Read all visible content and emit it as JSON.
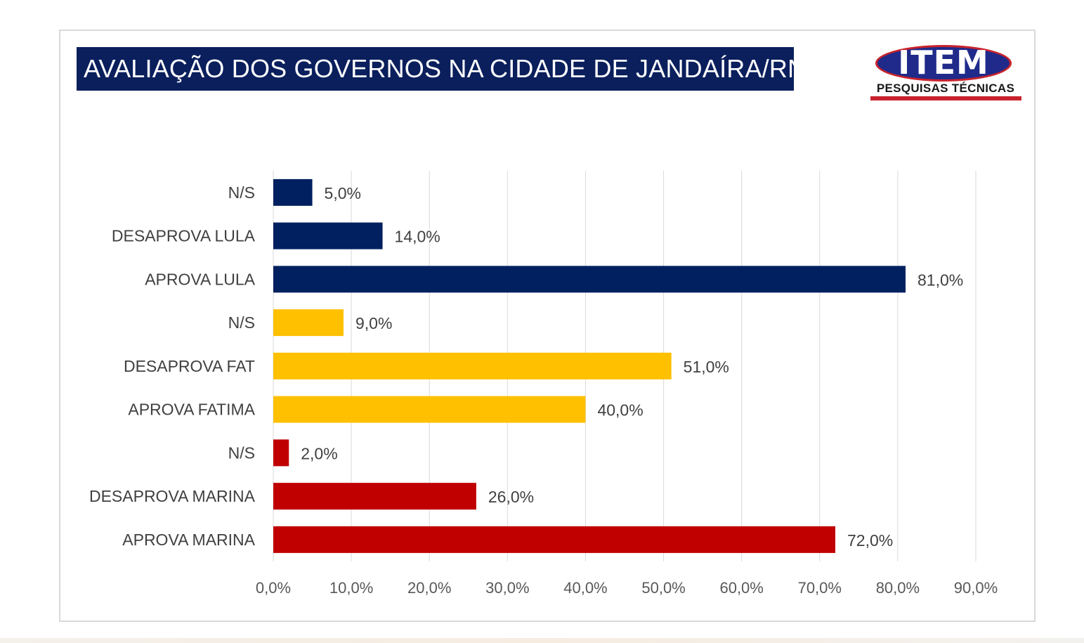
{
  "header": {
    "title": "AVALIAÇÃO DOS GOVERNOS NA CIDADE DE JANDAÍRA/RN"
  },
  "logo": {
    "main_text": "ITEM",
    "sub_text": "PESQUISAS TÉCNICAS"
  },
  "colors": {
    "title_bg": "#0a1f5c",
    "lula": "#002060",
    "fatima": "#ffc000",
    "marina": "#c00000",
    "gridline": "#d9d9d9",
    "label": "#404040"
  },
  "chart_data": {
    "type": "bar",
    "orientation": "horizontal",
    "title": "AVALIAÇÃO DOS GOVERNOS NA CIDADE DE JANDAÍRA/RN",
    "xlabel": "",
    "ylabel": "",
    "xlim": [
      0,
      90
    ],
    "x_ticks": [
      0,
      10,
      20,
      30,
      40,
      50,
      60,
      70,
      80,
      90
    ],
    "x_tick_labels": [
      "0,0%",
      "10,0%",
      "20,0%",
      "30,0%",
      "40,0%",
      "50,0%",
      "60,0%",
      "70,0%",
      "80,0%",
      "90,0%"
    ],
    "grid": true,
    "categories": [
      "N/S",
      "DESAPROVA LULA",
      "APROVA LULA",
      "N/S",
      "DESAPROVA FAT",
      "APROVA FATIMA",
      "N/S",
      "DESAPROVA MARINA",
      "APROVA MARINA"
    ],
    "values": [
      5,
      14,
      81,
      9,
      51,
      40,
      2,
      26,
      72
    ],
    "value_labels": [
      "5,0%",
      "14,0%",
      "81,0%",
      "9,0%",
      "51,0%",
      "40,0%",
      "2,0%",
      "26,0%",
      "72,0%"
    ],
    "groups": [
      "lula",
      "lula",
      "lula",
      "fatima",
      "fatima",
      "fatima",
      "marina",
      "marina",
      "marina"
    ]
  }
}
